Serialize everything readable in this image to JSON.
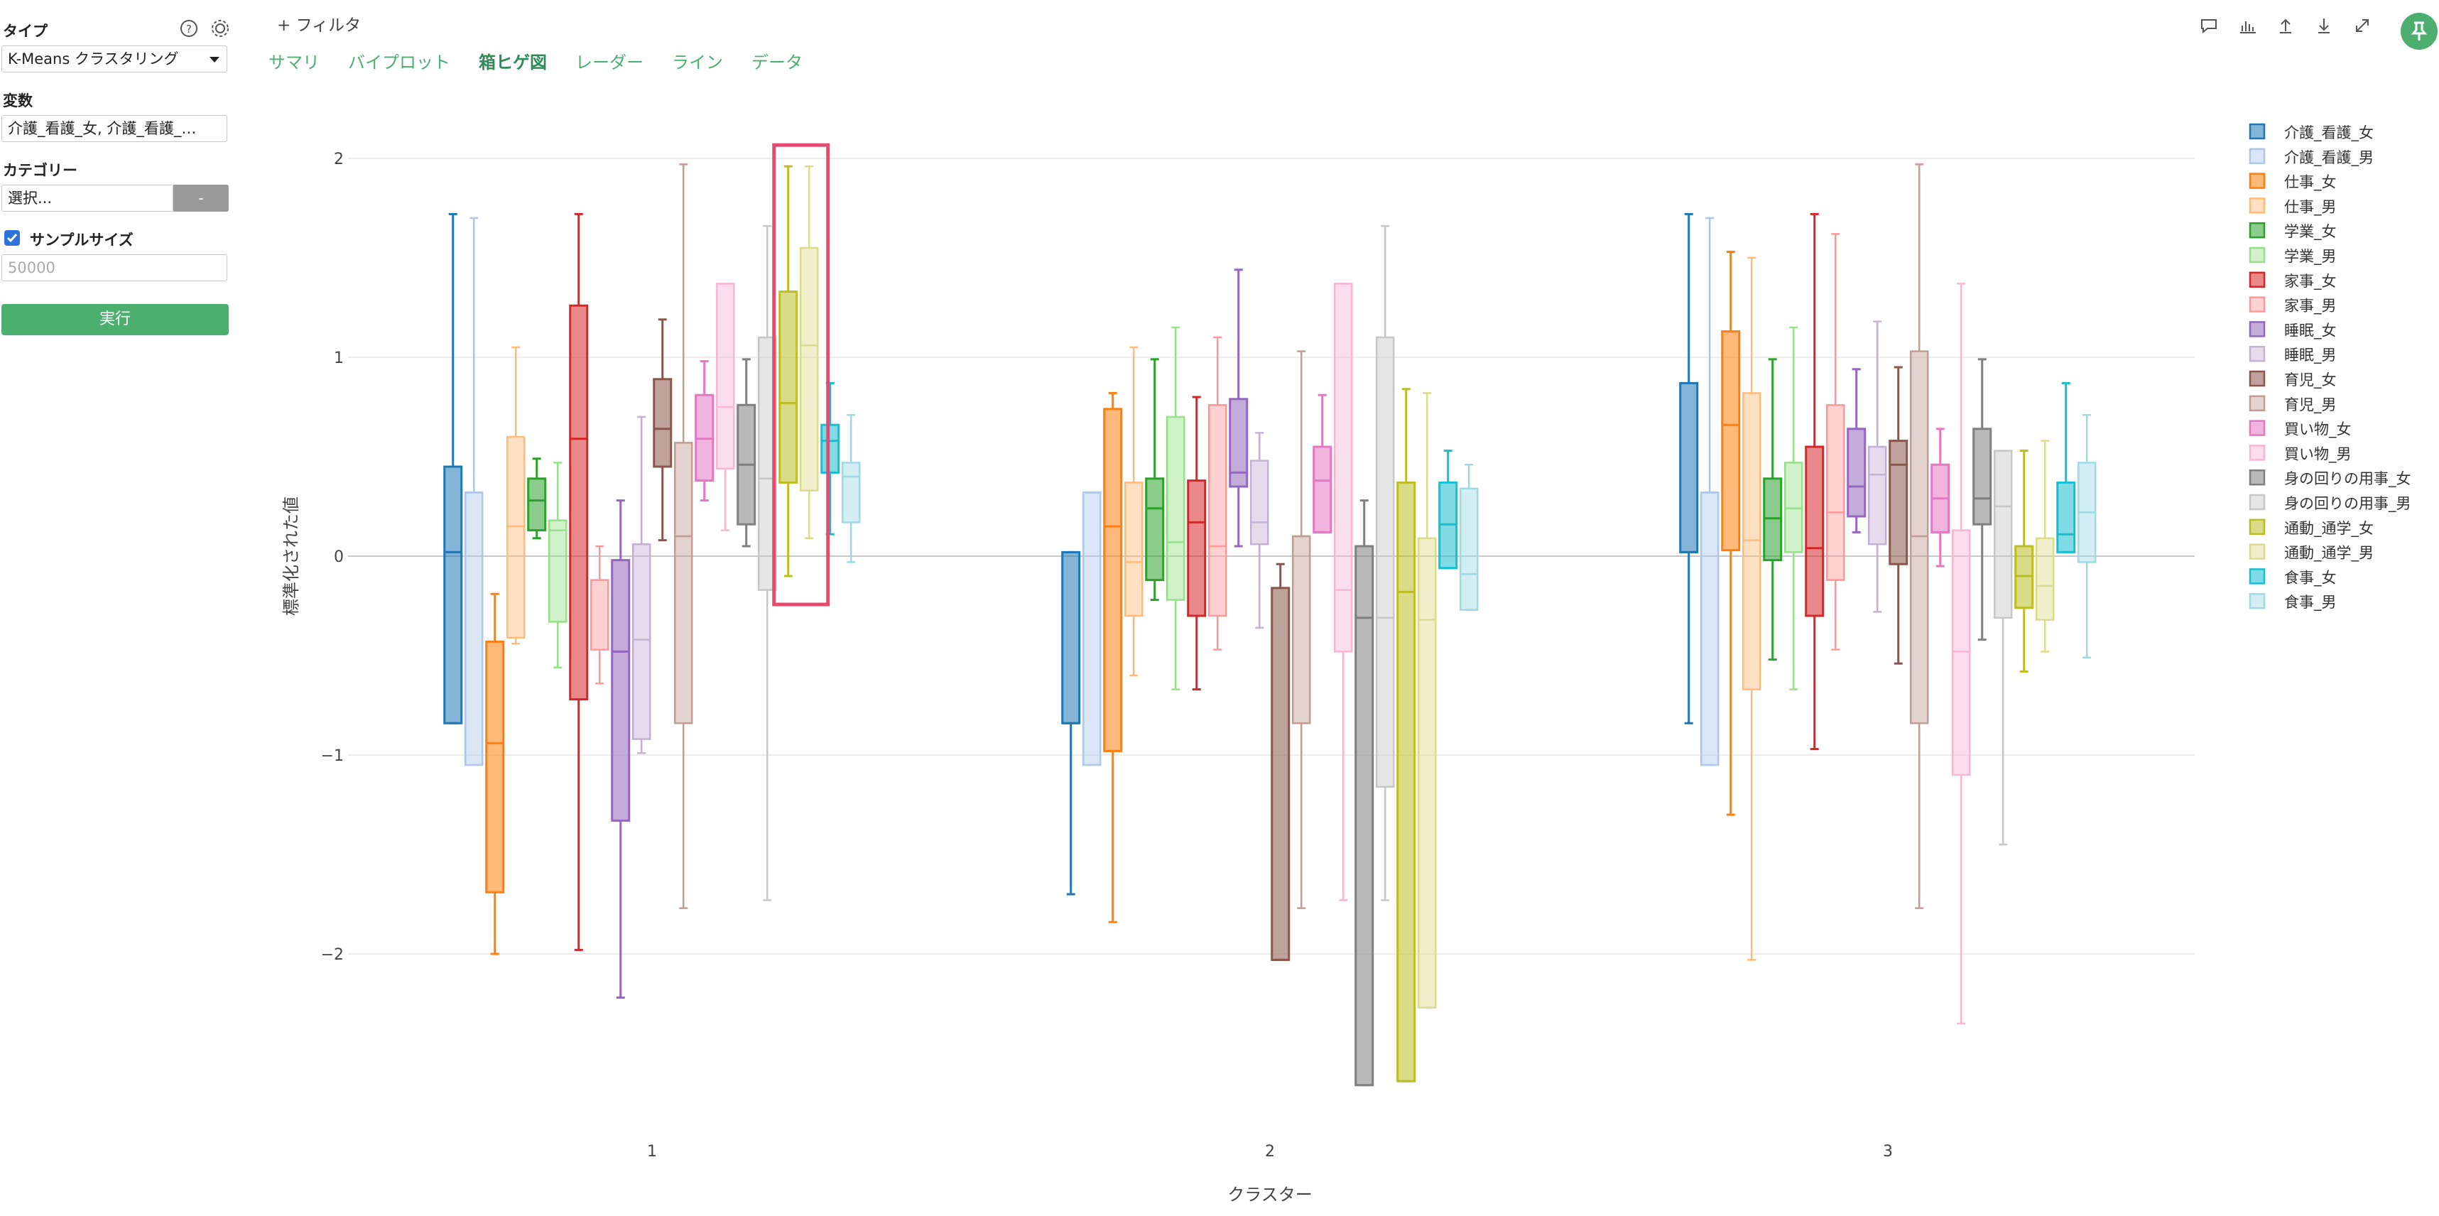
{
  "sidebar": {
    "type_label": "タイプ",
    "type_value": "K-Means クラスタリング",
    "variables_label": "変数",
    "variables_value": "介護_看護_女, 介護_看護_…",
    "category_label": "カテゴリー",
    "category_value": "選択...",
    "category_clear": "-",
    "sample_label": "サンプルサイズ",
    "sample_placeholder": "50000",
    "run_label": "実行"
  },
  "header": {
    "filter_label": "+ フィルタ",
    "tabs": [
      "サマリ",
      "バイプロット",
      "箱ヒゲ図",
      "レーダー",
      "ライン",
      "データ"
    ],
    "active_tab": "箱ヒゲ図"
  },
  "colors": {
    "accent": "#4caf70",
    "highlight": "#e8496f"
  },
  "chart_data": {
    "type": "box",
    "xlabel": "クラスター",
    "ylabel": "標準化された値",
    "categories": [
      "1",
      "2",
      "3"
    ],
    "ylim": [
      -2.7,
      2.1
    ],
    "yticks": [
      2,
      1,
      0,
      -1,
      -2
    ],
    "ytick_labels": [
      "2",
      "1",
      "0",
      "−1",
      "−2"
    ],
    "grid": true,
    "legend_position": "right",
    "highlight": {
      "category": "1",
      "series": "通動_通学_女"
    },
    "series": [
      {
        "name": "介護_看護_女",
        "color": "#1f77b4",
        "solid": true,
        "boxes": [
          {
            "min": -0.84,
            "q1": -0.84,
            "median": 0.02,
            "q3": 0.45,
            "max": 1.72
          },
          {
            "min": -1.7,
            "q1": -0.84,
            "median": -0.84,
            "q3": 0.02,
            "max": 0.02
          },
          {
            "min": -0.84,
            "q1": 0.02,
            "median": 0.02,
            "q3": 0.87,
            "max": 1.72
          }
        ]
      },
      {
        "name": "介護_看護_男",
        "color": "#aec7e8",
        "solid": false,
        "boxes": [
          {
            "min": -1.05,
            "q1": -1.05,
            "median": 0.32,
            "q3": 0.32,
            "max": 1.7
          },
          {
            "min": -1.05,
            "q1": -1.05,
            "median": 0.32,
            "q3": 0.32,
            "max": 0.32
          },
          {
            "min": -1.05,
            "q1": -1.05,
            "median": 0.32,
            "q3": 0.32,
            "max": 1.7
          }
        ]
      },
      {
        "name": "仕事_女",
        "color": "#ff7f0e",
        "solid": true,
        "boxes": [
          {
            "min": -2.0,
            "q1": -1.69,
            "median": -0.94,
            "q3": -0.43,
            "max": -0.19
          },
          {
            "min": -1.84,
            "q1": -0.98,
            "median": 0.15,
            "q3": 0.74,
            "max": 0.82
          },
          {
            "min": -1.3,
            "q1": 0.03,
            "median": 0.66,
            "q3": 1.13,
            "max": 1.53
          }
        ]
      },
      {
        "name": "仕事_男",
        "color": "#ffbb78",
        "solid": false,
        "boxes": [
          {
            "min": -0.44,
            "q1": -0.41,
            "median": 0.15,
            "q3": 0.6,
            "max": 1.05
          },
          {
            "min": -0.6,
            "q1": -0.3,
            "median": -0.03,
            "q3": 0.37,
            "max": 1.05
          },
          {
            "min": -2.03,
            "q1": -0.67,
            "median": 0.08,
            "q3": 0.82,
            "max": 1.5
          }
        ]
      },
      {
        "name": "学業_女",
        "color": "#2ca02c",
        "solid": true,
        "boxes": [
          {
            "min": 0.09,
            "q1": 0.13,
            "median": 0.28,
            "q3": 0.39,
            "max": 0.49
          },
          {
            "min": -0.22,
            "q1": -0.12,
            "median": 0.24,
            "q3": 0.39,
            "max": 0.99
          },
          {
            "min": -0.52,
            "q1": -0.02,
            "median": 0.19,
            "q3": 0.39,
            "max": 0.99
          }
        ]
      },
      {
        "name": "学業_男",
        "color": "#98df8a",
        "solid": false,
        "boxes": [
          {
            "min": -0.56,
            "q1": -0.33,
            "median": 0.13,
            "q3": 0.18,
            "max": 0.47
          },
          {
            "min": -0.67,
            "q1": -0.22,
            "median": 0.07,
            "q3": 0.7,
            "max": 1.15
          },
          {
            "min": -0.67,
            "q1": 0.02,
            "median": 0.24,
            "q3": 0.47,
            "max": 1.15
          }
        ]
      },
      {
        "name": "家事_女",
        "color": "#d62728",
        "solid": true,
        "boxes": [
          {
            "min": -1.98,
            "q1": -0.72,
            "median": 0.59,
            "q3": 1.26,
            "max": 1.72
          },
          {
            "min": -0.67,
            "q1": -0.3,
            "median": 0.17,
            "q3": 0.38,
            "max": 0.8
          },
          {
            "min": -0.97,
            "q1": -0.3,
            "median": 0.04,
            "q3": 0.55,
            "max": 1.72
          }
        ]
      },
      {
        "name": "家事_男",
        "color": "#ff9896",
        "solid": false,
        "boxes": [
          {
            "min": -0.64,
            "q1": -0.47,
            "median": -0.12,
            "q3": -0.12,
            "max": 0.05
          },
          {
            "min": -0.47,
            "q1": -0.3,
            "median": 0.05,
            "q3": 0.76,
            "max": 1.1
          },
          {
            "min": -0.47,
            "q1": -0.12,
            "median": 0.22,
            "q3": 0.76,
            "max": 1.62
          }
        ]
      },
      {
        "name": "睡眠_女",
        "color": "#9467bd",
        "solid": true,
        "boxes": [
          {
            "min": -2.22,
            "q1": -1.33,
            "median": -0.48,
            "q3": -0.02,
            "max": 0.28
          },
          {
            "min": 0.05,
            "q1": 0.35,
            "median": 0.42,
            "q3": 0.79,
            "max": 1.44
          },
          {
            "min": 0.12,
            "q1": 0.2,
            "median": 0.35,
            "q3": 0.64,
            "max": 0.94
          }
        ]
      },
      {
        "name": "睡眠_男",
        "color": "#c5b0d5",
        "solid": false,
        "boxes": [
          {
            "min": -0.99,
            "q1": -0.92,
            "median": -0.42,
            "q3": 0.06,
            "max": 0.7
          },
          {
            "min": -0.36,
            "q1": 0.06,
            "median": 0.17,
            "q3": 0.48,
            "max": 0.62
          },
          {
            "min": -0.28,
            "q1": 0.06,
            "median": 0.41,
            "q3": 0.55,
            "max": 1.18
          }
        ]
      },
      {
        "name": "育児_女",
        "color": "#8c564b",
        "solid": true,
        "boxes": [
          {
            "min": 0.08,
            "q1": 0.45,
            "median": 0.64,
            "q3": 0.89,
            "max": 1.19
          },
          {
            "min": -2.03,
            "q1": -2.03,
            "median": -2.03,
            "q3": -0.16,
            "max": -0.04
          },
          {
            "min": -0.54,
            "q1": -0.04,
            "median": 0.46,
            "q3": 0.58,
            "max": 0.95
          }
        ]
      },
      {
        "name": "育児_男",
        "color": "#c49c94",
        "solid": false,
        "boxes": [
          {
            "min": -1.77,
            "q1": -0.84,
            "median": 0.1,
            "q3": 0.57,
            "max": 1.97
          },
          {
            "min": -1.77,
            "q1": -0.84,
            "median": 0.1,
            "q3": 0.1,
            "max": 1.03
          },
          {
            "min": -1.77,
            "q1": -0.84,
            "median": 0.1,
            "q3": 1.03,
            "max": 1.97
          }
        ]
      },
      {
        "name": "買い物_女",
        "color": "#e377c2",
        "solid": true,
        "boxes": [
          {
            "min": 0.28,
            "q1": 0.38,
            "median": 0.59,
            "q3": 0.81,
            "max": 0.98
          },
          {
            "min": 0.12,
            "q1": 0.12,
            "median": 0.38,
            "q3": 0.55,
            "max": 0.81
          },
          {
            "min": -0.05,
            "q1": 0.12,
            "median": 0.29,
            "q3": 0.46,
            "max": 0.64
          }
        ]
      },
      {
        "name": "買い物_男",
        "color": "#f7b6d2",
        "solid": false,
        "boxes": [
          {
            "min": 0.13,
            "q1": 0.44,
            "median": 0.75,
            "q3": 1.37,
            "max": 1.37
          },
          {
            "min": -1.73,
            "q1": -0.48,
            "median": -0.17,
            "q3": 1.37,
            "max": 1.37
          },
          {
            "min": -2.35,
            "q1": -1.1,
            "median": -0.48,
            "q3": 0.13,
            "max": 1.37
          }
        ]
      },
      {
        "name": "身の回りの用事_女",
        "color": "#7f7f7f",
        "solid": true,
        "boxes": [
          {
            "min": 0.05,
            "q1": 0.16,
            "median": 0.46,
            "q3": 0.76,
            "max": 0.99
          },
          {
            "min": -2.66,
            "q1": -2.66,
            "median": -0.31,
            "q3": 0.05,
            "max": 0.28
          },
          {
            "min": -0.42,
            "q1": 0.16,
            "median": 0.29,
            "q3": 0.64,
            "max": 0.99
          }
        ]
      },
      {
        "name": "身の回りの用事_男",
        "color": "#c7c7c7",
        "solid": false,
        "boxes": [
          {
            "min": -1.73,
            "q1": -0.17,
            "median": 0.39,
            "q3": 1.1,
            "max": 1.66
          },
          {
            "min": -1.73,
            "q1": -1.16,
            "median": -0.31,
            "q3": 1.1,
            "max": 1.66
          },
          {
            "min": -1.45,
            "q1": -0.31,
            "median": 0.25,
            "q3": 0.53,
            "max": 0.53
          }
        ]
      },
      {
        "name": "通動_通学_女",
        "color": "#bcbd22",
        "solid": true,
        "boxes": [
          {
            "min": -0.1,
            "q1": 0.37,
            "median": 0.77,
            "q3": 1.33,
            "max": 1.96
          },
          {
            "min": -2.64,
            "q1": -2.64,
            "median": -0.18,
            "q3": 0.37,
            "max": 0.84
          },
          {
            "min": -0.58,
            "q1": -0.26,
            "median": -0.1,
            "q3": 0.05,
            "max": 0.53
          }
        ]
      },
      {
        "name": "通動_通学_男",
        "color": "#dbdb8d",
        "solid": false,
        "boxes": [
          {
            "min": 0.09,
            "q1": 0.33,
            "median": 1.06,
            "q3": 1.55,
            "max": 1.96
          },
          {
            "min": -2.27,
            "q1": -2.27,
            "median": -0.32,
            "q3": 0.09,
            "max": 0.82
          },
          {
            "min": -0.48,
            "q1": -0.32,
            "median": -0.15,
            "q3": 0.09,
            "max": 0.58
          }
        ]
      },
      {
        "name": "食事_女",
        "color": "#17becf",
        "solid": true,
        "boxes": [
          {
            "min": 0.11,
            "q1": 0.42,
            "median": 0.58,
            "q3": 0.66,
            "max": 0.87
          },
          {
            "min": -0.06,
            "q1": -0.06,
            "median": 0.16,
            "q3": 0.37,
            "max": 0.53
          },
          {
            "min": 0.02,
            "q1": 0.02,
            "median": 0.11,
            "q3": 0.37,
            "max": 0.87
          }
        ]
      },
      {
        "name": "食事_男",
        "color": "#9edae5",
        "solid": false,
        "boxes": [
          {
            "min": -0.03,
            "q1": 0.17,
            "median": 0.4,
            "q3": 0.47,
            "max": 0.71
          },
          {
            "min": -0.27,
            "q1": -0.27,
            "median": -0.09,
            "q3": 0.34,
            "max": 0.46
          },
          {
            "min": -0.51,
            "q1": -0.03,
            "median": 0.22,
            "q3": 0.47,
            "max": 0.71
          }
        ]
      }
    ]
  }
}
